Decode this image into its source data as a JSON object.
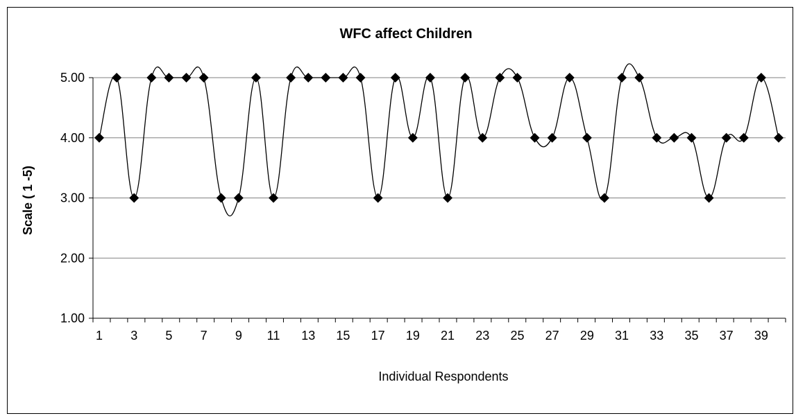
{
  "chart_data": {
    "type": "line",
    "title": "WFC affect Children",
    "xlabel": "Individual Respondents",
    "ylabel": "Scale  ( 1 -5)",
    "x": [
      1,
      2,
      3,
      4,
      5,
      6,
      7,
      8,
      9,
      10,
      11,
      12,
      13,
      14,
      15,
      16,
      17,
      18,
      19,
      20,
      21,
      22,
      23,
      24,
      25,
      26,
      27,
      28,
      29,
      30,
      31,
      32,
      33,
      34,
      35,
      36,
      37,
      38,
      39,
      40
    ],
    "series": [
      {
        "values": [
          4,
          5,
          3,
          5,
          5,
          5,
          5,
          3,
          3,
          5,
          3,
          5,
          5,
          5,
          5,
          5,
          3,
          5,
          4,
          5,
          3,
          5,
          4,
          5,
          5,
          4,
          4,
          5,
          4,
          3,
          5,
          5,
          4,
          4,
          4,
          3,
          4,
          4,
          5,
          4
        ]
      }
    ],
    "xtick_labels": [
      "1",
      "3",
      "5",
      "7",
      "9",
      "11",
      "13",
      "15",
      "17",
      "19",
      "21",
      "23",
      "25",
      "27",
      "29",
      "31",
      "33",
      "35",
      "37",
      "39"
    ],
    "ytick_labels": [
      "1.00",
      "2.00",
      "3.00",
      "4.00",
      "5.00"
    ],
    "ylim": [
      1,
      5
    ],
    "grid": "horizontal",
    "line_color": "#000000",
    "marker": "diamond"
  }
}
